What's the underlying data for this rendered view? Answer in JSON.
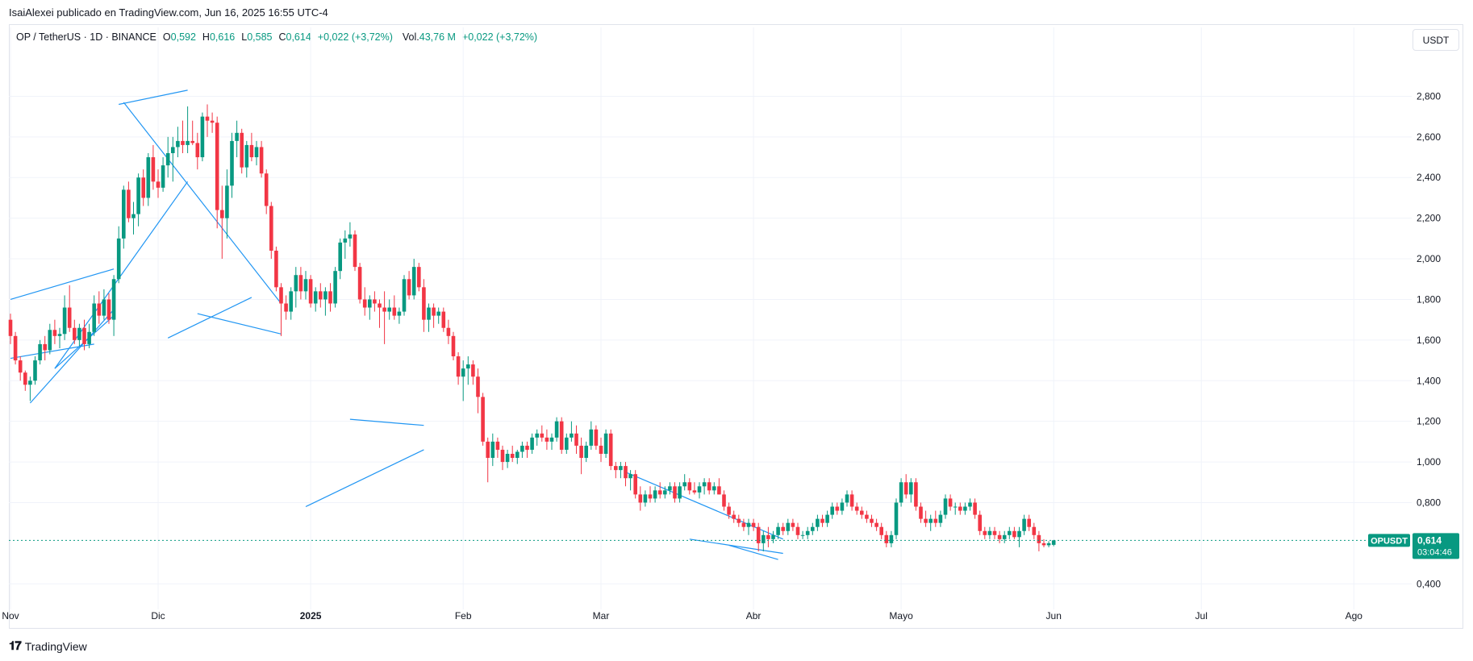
{
  "caption": "IsaiAlexei publicado en TradingView.com, Jun 16, 2025 16:55 UTC-4",
  "legend": {
    "symbol": "OP / TetherUS · 1D · BINANCE",
    "open_label": "O",
    "open": "0,592",
    "high_label": "H",
    "high": "0,616",
    "low_label": "L",
    "low": "0,585",
    "close_label": "C",
    "close": "0,614",
    "change": "+0,022 (+3,72%)",
    "volume_label": "Vol.",
    "volume": "43,76 M",
    "volume_change": "+0,022 (+3,72%)"
  },
  "currency_button": "USDT",
  "footer": {
    "brand": "TradingView",
    "logo": "𝟏𝟕"
  },
  "colors": {
    "up": "#089981",
    "down": "#f23645",
    "drawing": "#2196f3",
    "grid": "#f0f3fa",
    "axis_text": "#131722"
  },
  "chart_data": {
    "type": "candlestick",
    "symbol": "OPUSDT",
    "ylim": [
      0.29,
      3.02
    ],
    "y_ticks": [
      "2,800",
      "2,600",
      "2,400",
      "2,200",
      "2,000",
      "1,800",
      "1,600",
      "1,400",
      "1,200",
      "1,000",
      "0,800",
      "0,400"
    ],
    "y_tick_values": [
      2.8,
      2.6,
      2.4,
      2.2,
      2.0,
      1.8,
      1.6,
      1.4,
      1.2,
      1.0,
      0.8,
      0.4
    ],
    "x_ticks": [
      "Nov",
      "Dic",
      "2025",
      "Feb",
      "Mar",
      "Abr",
      "Mayo",
      "Jun",
      "Jul",
      "Ago"
    ],
    "x_tick_index": [
      0,
      30,
      61,
      92,
      120,
      151,
      181,
      212,
      242,
      273
    ],
    "price_label": {
      "symbol": "OPUSDT",
      "price": "0,614",
      "countdown": "03:04:46",
      "value": 0.614
    },
    "candles_ohlc": [
      [
        1.7,
        1.73,
        1.58,
        1.62
      ],
      [
        1.62,
        1.64,
        1.48,
        1.5
      ],
      [
        1.5,
        1.52,
        1.4,
        1.44
      ],
      [
        1.44,
        1.45,
        1.35,
        1.38
      ],
      [
        1.38,
        1.42,
        1.3,
        1.4
      ],
      [
        1.4,
        1.52,
        1.38,
        1.5
      ],
      [
        1.5,
        1.6,
        1.48,
        1.58
      ],
      [
        1.58,
        1.62,
        1.5,
        1.55
      ],
      [
        1.55,
        1.68,
        1.53,
        1.65
      ],
      [
        1.65,
        1.7,
        1.58,
        1.62
      ],
      [
        1.62,
        1.66,
        1.56,
        1.63
      ],
      [
        1.63,
        1.82,
        1.6,
        1.76
      ],
      [
        1.76,
        1.87,
        1.64,
        1.66
      ],
      [
        1.66,
        1.7,
        1.58,
        1.6
      ],
      [
        1.6,
        1.68,
        1.57,
        1.66
      ],
      [
        1.66,
        1.7,
        1.55,
        1.58
      ],
      [
        1.58,
        1.68,
        1.56,
        1.64
      ],
      [
        1.64,
        1.82,
        1.62,
        1.78
      ],
      [
        1.78,
        1.84,
        1.68,
        1.72
      ],
      [
        1.72,
        1.85,
        1.7,
        1.8
      ],
      [
        1.8,
        1.83,
        1.68,
        1.7
      ],
      [
        1.7,
        1.92,
        1.62,
        1.9
      ],
      [
        1.9,
        2.16,
        1.88,
        2.1
      ],
      [
        2.1,
        2.36,
        2.05,
        2.34
      ],
      [
        2.34,
        2.38,
        2.18,
        2.2
      ],
      [
        2.2,
        2.28,
        2.12,
        2.22
      ],
      [
        2.22,
        2.42,
        2.16,
        2.4
      ],
      [
        2.4,
        2.44,
        2.26,
        2.3
      ],
      [
        2.3,
        2.52,
        2.26,
        2.5
      ],
      [
        2.5,
        2.56,
        2.34,
        2.38
      ],
      [
        2.38,
        2.44,
        2.3,
        2.35
      ],
      [
        2.35,
        2.5,
        2.33,
        2.46
      ],
      [
        2.46,
        2.6,
        2.4,
        2.52
      ],
      [
        2.52,
        2.6,
        2.38,
        2.55
      ],
      [
        2.55,
        2.65,
        2.5,
        2.58
      ],
      [
        2.58,
        2.68,
        2.52,
        2.56
      ],
      [
        2.56,
        2.75,
        2.52,
        2.58
      ],
      [
        2.58,
        2.68,
        2.56,
        2.57
      ],
      [
        2.57,
        2.62,
        2.44,
        2.5
      ],
      [
        2.5,
        2.72,
        2.48,
        2.7
      ],
      [
        2.7,
        2.76,
        2.6,
        2.68
      ],
      [
        2.68,
        2.72,
        2.62,
        2.67
      ],
      [
        2.67,
        2.7,
        2.15,
        2.24
      ],
      [
        2.24,
        2.36,
        2.0,
        2.2
      ],
      [
        2.2,
        2.44,
        2.1,
        2.36
      ],
      [
        2.36,
        2.62,
        2.3,
        2.58
      ],
      [
        2.58,
        2.68,
        2.5,
        2.62
      ],
      [
        2.62,
        2.64,
        2.42,
        2.45
      ],
      [
        2.45,
        2.58,
        2.4,
        2.56
      ],
      [
        2.56,
        2.62,
        2.48,
        2.5
      ],
      [
        2.5,
        2.58,
        2.46,
        2.55
      ],
      [
        2.55,
        2.58,
        2.4,
        2.42
      ],
      [
        2.42,
        2.44,
        2.22,
        2.26
      ],
      [
        2.26,
        2.28,
        2.0,
        2.04
      ],
      [
        2.04,
        2.06,
        1.84,
        1.86
      ],
      [
        1.86,
        1.88,
        1.62,
        1.78
      ],
      [
        1.78,
        1.82,
        1.7,
        1.74
      ],
      [
        1.74,
        1.86,
        1.7,
        1.84
      ],
      [
        1.84,
        1.96,
        1.76,
        1.92
      ],
      [
        1.92,
        1.96,
        1.8,
        1.84
      ],
      [
        1.84,
        1.94,
        1.8,
        1.9
      ],
      [
        1.9,
        1.92,
        1.76,
        1.78
      ],
      [
        1.78,
        1.86,
        1.74,
        1.84
      ],
      [
        1.84,
        1.88,
        1.76,
        1.8
      ],
      [
        1.8,
        1.86,
        1.72,
        1.84
      ],
      [
        1.84,
        1.88,
        1.74,
        1.78
      ],
      [
        1.78,
        1.96,
        1.76,
        1.94
      ],
      [
        1.94,
        2.1,
        1.9,
        2.08
      ],
      [
        2.08,
        2.14,
        2.0,
        2.1
      ],
      [
        2.1,
        2.18,
        2.06,
        2.12
      ],
      [
        2.12,
        2.14,
        1.94,
        1.96
      ],
      [
        1.96,
        1.98,
        1.78,
        1.8
      ],
      [
        1.8,
        1.86,
        1.72,
        1.76
      ],
      [
        1.76,
        1.82,
        1.7,
        1.8
      ],
      [
        1.8,
        1.84,
        1.74,
        1.78
      ],
      [
        1.78,
        1.8,
        1.66,
        1.76
      ],
      [
        1.76,
        1.84,
        1.58,
        1.74
      ],
      [
        1.74,
        1.8,
        1.7,
        1.76
      ],
      [
        1.76,
        1.82,
        1.7,
        1.72
      ],
      [
        1.72,
        1.76,
        1.68,
        1.74
      ],
      [
        1.74,
        1.92,
        1.72,
        1.9
      ],
      [
        1.9,
        1.94,
        1.8,
        1.82
      ],
      [
        1.82,
        2.0,
        1.8,
        1.96
      ],
      [
        1.96,
        1.98,
        1.84,
        1.86
      ],
      [
        1.86,
        1.9,
        1.64,
        1.7
      ],
      [
        1.7,
        1.78,
        1.64,
        1.76
      ],
      [
        1.76,
        1.78,
        1.66,
        1.72
      ],
      [
        1.72,
        1.76,
        1.68,
        1.74
      ],
      [
        1.74,
        1.76,
        1.64,
        1.66
      ],
      [
        1.66,
        1.7,
        1.58,
        1.62
      ],
      [
        1.62,
        1.64,
        1.5,
        1.52
      ],
      [
        1.52,
        1.54,
        1.38,
        1.42
      ],
      [
        1.42,
        1.5,
        1.3,
        1.46
      ],
      [
        1.46,
        1.52,
        1.38,
        1.48
      ],
      [
        1.48,
        1.5,
        1.38,
        1.42
      ],
      [
        1.42,
        1.46,
        1.24,
        1.32
      ],
      [
        1.32,
        1.34,
        1.08,
        1.1
      ],
      [
        1.1,
        1.12,
        0.9,
        1.02
      ],
      [
        1.02,
        1.14,
        0.98,
        1.1
      ],
      [
        1.1,
        1.12,
        1.02,
        1.06
      ],
      [
        1.06,
        1.08,
        0.96,
        1.0
      ],
      [
        1.0,
        1.06,
        0.97,
        1.04
      ],
      [
        1.04,
        1.08,
        1.0,
        1.02
      ],
      [
        1.02,
        1.06,
        0.99,
        1.05
      ],
      [
        1.05,
        1.1,
        1.02,
        1.08
      ],
      [
        1.08,
        1.1,
        1.02,
        1.06
      ],
      [
        1.06,
        1.14,
        1.04,
        1.12
      ],
      [
        1.12,
        1.16,
        1.08,
        1.14
      ],
      [
        1.14,
        1.18,
        1.1,
        1.12
      ],
      [
        1.12,
        1.16,
        1.06,
        1.1
      ],
      [
        1.1,
        1.14,
        1.06,
        1.12
      ],
      [
        1.12,
        1.22,
        1.1,
        1.2
      ],
      [
        1.2,
        1.22,
        1.04,
        1.06
      ],
      [
        1.06,
        1.14,
        1.04,
        1.12
      ],
      [
        1.12,
        1.2,
        1.1,
        1.14
      ],
      [
        1.14,
        1.18,
        1.04,
        1.08
      ],
      [
        1.08,
        1.12,
        0.94,
        1.02
      ],
      [
        1.02,
        1.1,
        1.0,
        1.08
      ],
      [
        1.08,
        1.2,
        1.06,
        1.16
      ],
      [
        1.16,
        1.18,
        1.06,
        1.08
      ],
      [
        1.08,
        1.12,
        1.0,
        1.04
      ],
      [
        1.04,
        1.16,
        1.02,
        1.14
      ],
      [
        1.14,
        1.16,
        0.96,
        0.98
      ],
      [
        0.98,
        1.0,
        0.92,
        0.96
      ],
      [
        0.96,
        1.0,
        0.92,
        0.98
      ],
      [
        0.98,
        1.0,
        0.88,
        0.92
      ],
      [
        0.92,
        0.96,
        0.86,
        0.94
      ],
      [
        0.94,
        0.96,
        0.82,
        0.84
      ],
      [
        0.84,
        0.88,
        0.76,
        0.8
      ],
      [
        0.8,
        0.86,
        0.78,
        0.84
      ],
      [
        0.84,
        0.88,
        0.8,
        0.82
      ],
      [
        0.82,
        0.88,
        0.8,
        0.86
      ],
      [
        0.86,
        0.9,
        0.82,
        0.84
      ],
      [
        0.84,
        0.88,
        0.82,
        0.86
      ],
      [
        0.86,
        0.9,
        0.84,
        0.88
      ],
      [
        0.88,
        0.9,
        0.8,
        0.82
      ],
      [
        0.82,
        0.9,
        0.8,
        0.88
      ],
      [
        0.88,
        0.94,
        0.86,
        0.9
      ],
      [
        0.9,
        0.92,
        0.84,
        0.86
      ],
      [
        0.86,
        0.9,
        0.84,
        0.85
      ],
      [
        0.85,
        0.9,
        0.82,
        0.88
      ],
      [
        0.88,
        0.92,
        0.84,
        0.9
      ],
      [
        0.9,
        0.92,
        0.84,
        0.86
      ],
      [
        0.86,
        0.9,
        0.84,
        0.88
      ],
      [
        0.88,
        0.92,
        0.84,
        0.84
      ],
      [
        0.84,
        0.86,
        0.76,
        0.78
      ],
      [
        0.78,
        0.8,
        0.72,
        0.74
      ],
      [
        0.74,
        0.76,
        0.7,
        0.72
      ],
      [
        0.72,
        0.74,
        0.68,
        0.7
      ],
      [
        0.7,
        0.72,
        0.66,
        0.68
      ],
      [
        0.68,
        0.72,
        0.64,
        0.7
      ],
      [
        0.7,
        0.72,
        0.66,
        0.68
      ],
      [
        0.68,
        0.7,
        0.56,
        0.6
      ],
      [
        0.6,
        0.66,
        0.56,
        0.64
      ],
      [
        0.64,
        0.68,
        0.58,
        0.62
      ],
      [
        0.62,
        0.66,
        0.6,
        0.64
      ],
      [
        0.64,
        0.7,
        0.62,
        0.68
      ],
      [
        0.68,
        0.7,
        0.64,
        0.66
      ],
      [
        0.66,
        0.72,
        0.64,
        0.7
      ],
      [
        0.7,
        0.72,
        0.66,
        0.68
      ],
      [
        0.68,
        0.7,
        0.62,
        0.64
      ],
      [
        0.64,
        0.66,
        0.62,
        0.64
      ],
      [
        0.64,
        0.68,
        0.62,
        0.66
      ],
      [
        0.66,
        0.7,
        0.64,
        0.68
      ],
      [
        0.68,
        0.74,
        0.66,
        0.72
      ],
      [
        0.72,
        0.74,
        0.68,
        0.7
      ],
      [
        0.7,
        0.76,
        0.68,
        0.74
      ],
      [
        0.74,
        0.8,
        0.72,
        0.78
      ],
      [
        0.78,
        0.8,
        0.74,
        0.76
      ],
      [
        0.76,
        0.82,
        0.74,
        0.8
      ],
      [
        0.8,
        0.86,
        0.78,
        0.84
      ],
      [
        0.84,
        0.86,
        0.76,
        0.78
      ],
      [
        0.78,
        0.8,
        0.74,
        0.76
      ],
      [
        0.76,
        0.78,
        0.72,
        0.74
      ],
      [
        0.74,
        0.76,
        0.7,
        0.72
      ],
      [
        0.72,
        0.74,
        0.68,
        0.7
      ],
      [
        0.7,
        0.72,
        0.66,
        0.68
      ],
      [
        0.68,
        0.7,
        0.62,
        0.64
      ],
      [
        0.64,
        0.66,
        0.58,
        0.6
      ],
      [
        0.6,
        0.66,
        0.58,
        0.64
      ],
      [
        0.64,
        0.82,
        0.62,
        0.8
      ],
      [
        0.8,
        0.92,
        0.78,
        0.9
      ],
      [
        0.9,
        0.94,
        0.82,
        0.84
      ],
      [
        0.84,
        0.92,
        0.8,
        0.9
      ],
      [
        0.9,
        0.92,
        0.76,
        0.78
      ],
      [
        0.78,
        0.8,
        0.7,
        0.72
      ],
      [
        0.72,
        0.76,
        0.68,
        0.7
      ],
      [
        0.7,
        0.74,
        0.66,
        0.72
      ],
      [
        0.72,
        0.76,
        0.68,
        0.7
      ],
      [
        0.7,
        0.76,
        0.68,
        0.74
      ],
      [
        0.74,
        0.84,
        0.72,
        0.82
      ],
      [
        0.82,
        0.84,
        0.76,
        0.78
      ],
      [
        0.78,
        0.8,
        0.74,
        0.78
      ],
      [
        0.78,
        0.8,
        0.74,
        0.76
      ],
      [
        0.76,
        0.8,
        0.74,
        0.78
      ],
      [
        0.78,
        0.82,
        0.76,
        0.8
      ],
      [
        0.8,
        0.82,
        0.72,
        0.74
      ],
      [
        0.74,
        0.76,
        0.64,
        0.66
      ],
      [
        0.66,
        0.68,
        0.62,
        0.64
      ],
      [
        0.64,
        0.68,
        0.62,
        0.66
      ],
      [
        0.66,
        0.68,
        0.62,
        0.64
      ],
      [
        0.64,
        0.66,
        0.6,
        0.62
      ],
      [
        0.62,
        0.66,
        0.6,
        0.64
      ],
      [
        0.64,
        0.68,
        0.62,
        0.66
      ],
      [
        0.66,
        0.68,
        0.62,
        0.63
      ],
      [
        0.63,
        0.68,
        0.58,
        0.66
      ],
      [
        0.66,
        0.74,
        0.64,
        0.72
      ],
      [
        0.72,
        0.74,
        0.66,
        0.68
      ],
      [
        0.68,
        0.7,
        0.62,
        0.64
      ],
      [
        0.64,
        0.66,
        0.56,
        0.6
      ],
      [
        0.6,
        0.62,
        0.58,
        0.59
      ],
      [
        0.59,
        0.61,
        0.58,
        0.6
      ],
      [
        0.592,
        0.616,
        0.585,
        0.614
      ]
    ],
    "drawings": [
      {
        "name": "trendline-nov-upper",
        "points": [
          [
            0,
            1.8
          ],
          [
            21,
            1.95
          ]
        ]
      },
      {
        "name": "trendline-nov-mid",
        "points": [
          [
            0,
            1.51
          ],
          [
            17,
            1.58
          ]
        ]
      },
      {
        "name": "trendline-nov-lower",
        "points": [
          [
            4,
            1.29
          ],
          [
            21,
            1.75
          ]
        ]
      },
      {
        "name": "trendline-nov-low2",
        "points": [
          [
            9,
            1.46
          ],
          [
            21,
            1.72
          ]
        ]
      },
      {
        "name": "trendline-dec-top",
        "points": [
          [
            22,
            2.76
          ],
          [
            36,
            2.83
          ]
        ]
      },
      {
        "name": "trendline-dec-support",
        "points": [
          [
            9,
            1.46
          ],
          [
            36,
            2.38
          ]
        ]
      },
      {
        "name": "trendline-dec-resistance",
        "points": [
          [
            23,
            2.77
          ],
          [
            55,
            1.78
          ]
        ]
      },
      {
        "name": "trendline-jan-low",
        "points": [
          [
            32,
            1.61
          ],
          [
            49,
            1.81
          ]
        ]
      },
      {
        "name": "trendline-jan-lower",
        "points": [
          [
            38,
            1.73
          ],
          [
            55,
            1.63
          ]
        ]
      },
      {
        "name": "trendline-feb-top",
        "points": [
          [
            69,
            1.21
          ],
          [
            84,
            1.18
          ]
        ]
      },
      {
        "name": "trendline-feb-support",
        "points": [
          [
            60,
            0.78
          ],
          [
            84,
            1.06
          ]
        ]
      },
      {
        "name": "trendline-may-resistance",
        "points": [
          [
            125,
            0.95
          ],
          [
            157,
            0.62
          ]
        ]
      },
      {
        "name": "trendline-may-support",
        "points": [
          [
            138,
            0.62
          ],
          [
            157,
            0.55
          ]
        ]
      },
      {
        "name": "trendline-may-support2",
        "points": [
          [
            146,
            0.59
          ],
          [
            156,
            0.52
          ]
        ]
      }
    ]
  }
}
